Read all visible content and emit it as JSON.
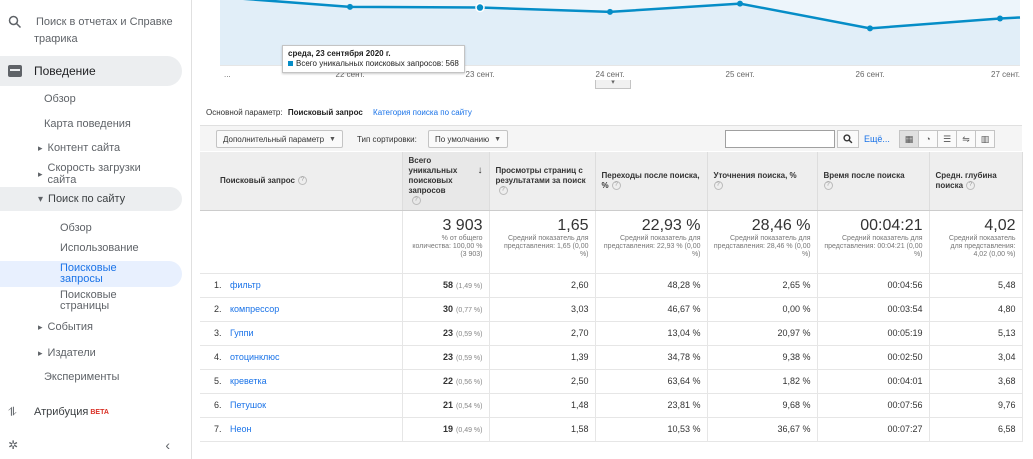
{
  "sidebar": {
    "search_placeholder": "Поиск в отчетах и Справке",
    "cut_item": "трафика",
    "behavior": "Поведение",
    "items": {
      "overview": "Обзор",
      "behavior_map": "Карта поведения",
      "site_content": "Контент сайта",
      "site_speed": "Скорость загрузки сайта",
      "site_search": "Поиск по сайту",
      "search_overview": "Обзор",
      "usage": "Использование",
      "search_terms": "Поисковые запросы",
      "search_pages": "Поисковые страницы",
      "events": "События",
      "publishers": "Издатели",
      "experiments": "Эксперименты"
    },
    "attribution": "Атрибуция",
    "beta": "BETA",
    "collapse_icon": "chevron-left-icon"
  },
  "chart": {
    "y_tick": "500",
    "x_labels": [
      "...",
      "22 сент.",
      "23 сент.",
      "24 сент.",
      "25 сент.",
      "26 сент.",
      "27 сент."
    ],
    "tooltip_date": "среда, 23 сентября 2020 г.",
    "tooltip_metric": "Всего уникальных поисковых запросов: 568",
    "line_color": "#058dc7"
  },
  "chart_data": {
    "type": "area",
    "x": [
      "22 сент.",
      "23 сент.",
      "24 сент.",
      "25 сент.",
      "26 сент.",
      "27 сент."
    ],
    "series": [
      {
        "name": "Всего уникальных поисковых запросов",
        "values": [
          570,
          568,
          555,
          580,
          505,
          535
        ]
      }
    ],
    "yticks": [
      500
    ]
  },
  "primary_dimension": {
    "label": "Основной параметр:",
    "value": "Поисковый запрос",
    "alt_link": "Категория поиска по сайту"
  },
  "toolbar": {
    "secondary_dim": "Дополнительный параметр",
    "sort_label": "Тип сортировки:",
    "sort_value": "По умолчанию",
    "search_value": "",
    "more": "Ещё..."
  },
  "table": {
    "headers": [
      "Поисковый запрос",
      "Всего уникальных поисковых запросов",
      "Просмотры страниц с результатами за поиск",
      "Переходы после поиска, %",
      "Уточнения поиска, %",
      "Время после поиска",
      "Средн. глубина поиска"
    ],
    "totals": [
      {
        "big": "3 903",
        "sub": "% от общего количества: 100,00 % (3 903)"
      },
      {
        "big": "1,65",
        "sub": "Средний показатель для представления: 1,65 (0,00 %)"
      },
      {
        "big": "22,93 %",
        "sub": "Средний показатель для представления: 22,93 % (0,00 %)"
      },
      {
        "big": "28,46 %",
        "sub": "Средний показатель для представления: 28,46 % (0,00 %)"
      },
      {
        "big": "00:04:21",
        "sub": "Средний показатель для представления: 00:04:21 (0,00 %)"
      },
      {
        "big": "4,02",
        "sub": "Средний показатель для представления: 4,02 (0,00 %)"
      }
    ],
    "rows": [
      {
        "n": "1.",
        "q": "фильтр",
        "uniq": "58",
        "pct": "(1,49 %)",
        "views": "2,60",
        "exits": "48,28 %",
        "refine": "2,65 %",
        "time": "00:04:56",
        "depth": "5,48"
      },
      {
        "n": "2.",
        "q": "компрессор",
        "uniq": "30",
        "pct": "(0,77 %)",
        "views": "3,03",
        "exits": "46,67 %",
        "refine": "0,00 %",
        "time": "00:03:54",
        "depth": "4,80"
      },
      {
        "n": "3.",
        "q": "Гуппи",
        "uniq": "23",
        "pct": "(0,59 %)",
        "views": "2,70",
        "exits": "13,04 %",
        "refine": "20,97 %",
        "time": "00:05:19",
        "depth": "5,13"
      },
      {
        "n": "4.",
        "q": "отоцинклюс",
        "uniq": "23",
        "pct": "(0,59 %)",
        "views": "1,39",
        "exits": "34,78 %",
        "refine": "9,38 %",
        "time": "00:02:50",
        "depth": "3,04"
      },
      {
        "n": "5.",
        "q": "креветка",
        "uniq": "22",
        "pct": "(0,56 %)",
        "views": "2,50",
        "exits": "63,64 %",
        "refine": "1,82 %",
        "time": "00:04:01",
        "depth": "3,68"
      },
      {
        "n": "6.",
        "q": "Петушок",
        "uniq": "21",
        "pct": "(0,54 %)",
        "views": "1,48",
        "exits": "23,81 %",
        "refine": "9,68 %",
        "time": "00:07:56",
        "depth": "9,76"
      },
      {
        "n": "7.",
        "q": "Неон",
        "uniq": "19",
        "pct": "(0,49 %)",
        "views": "1,58",
        "exits": "10,53 %",
        "refine": "36,67 %",
        "time": "00:07:27",
        "depth": "6,58"
      }
    ]
  }
}
